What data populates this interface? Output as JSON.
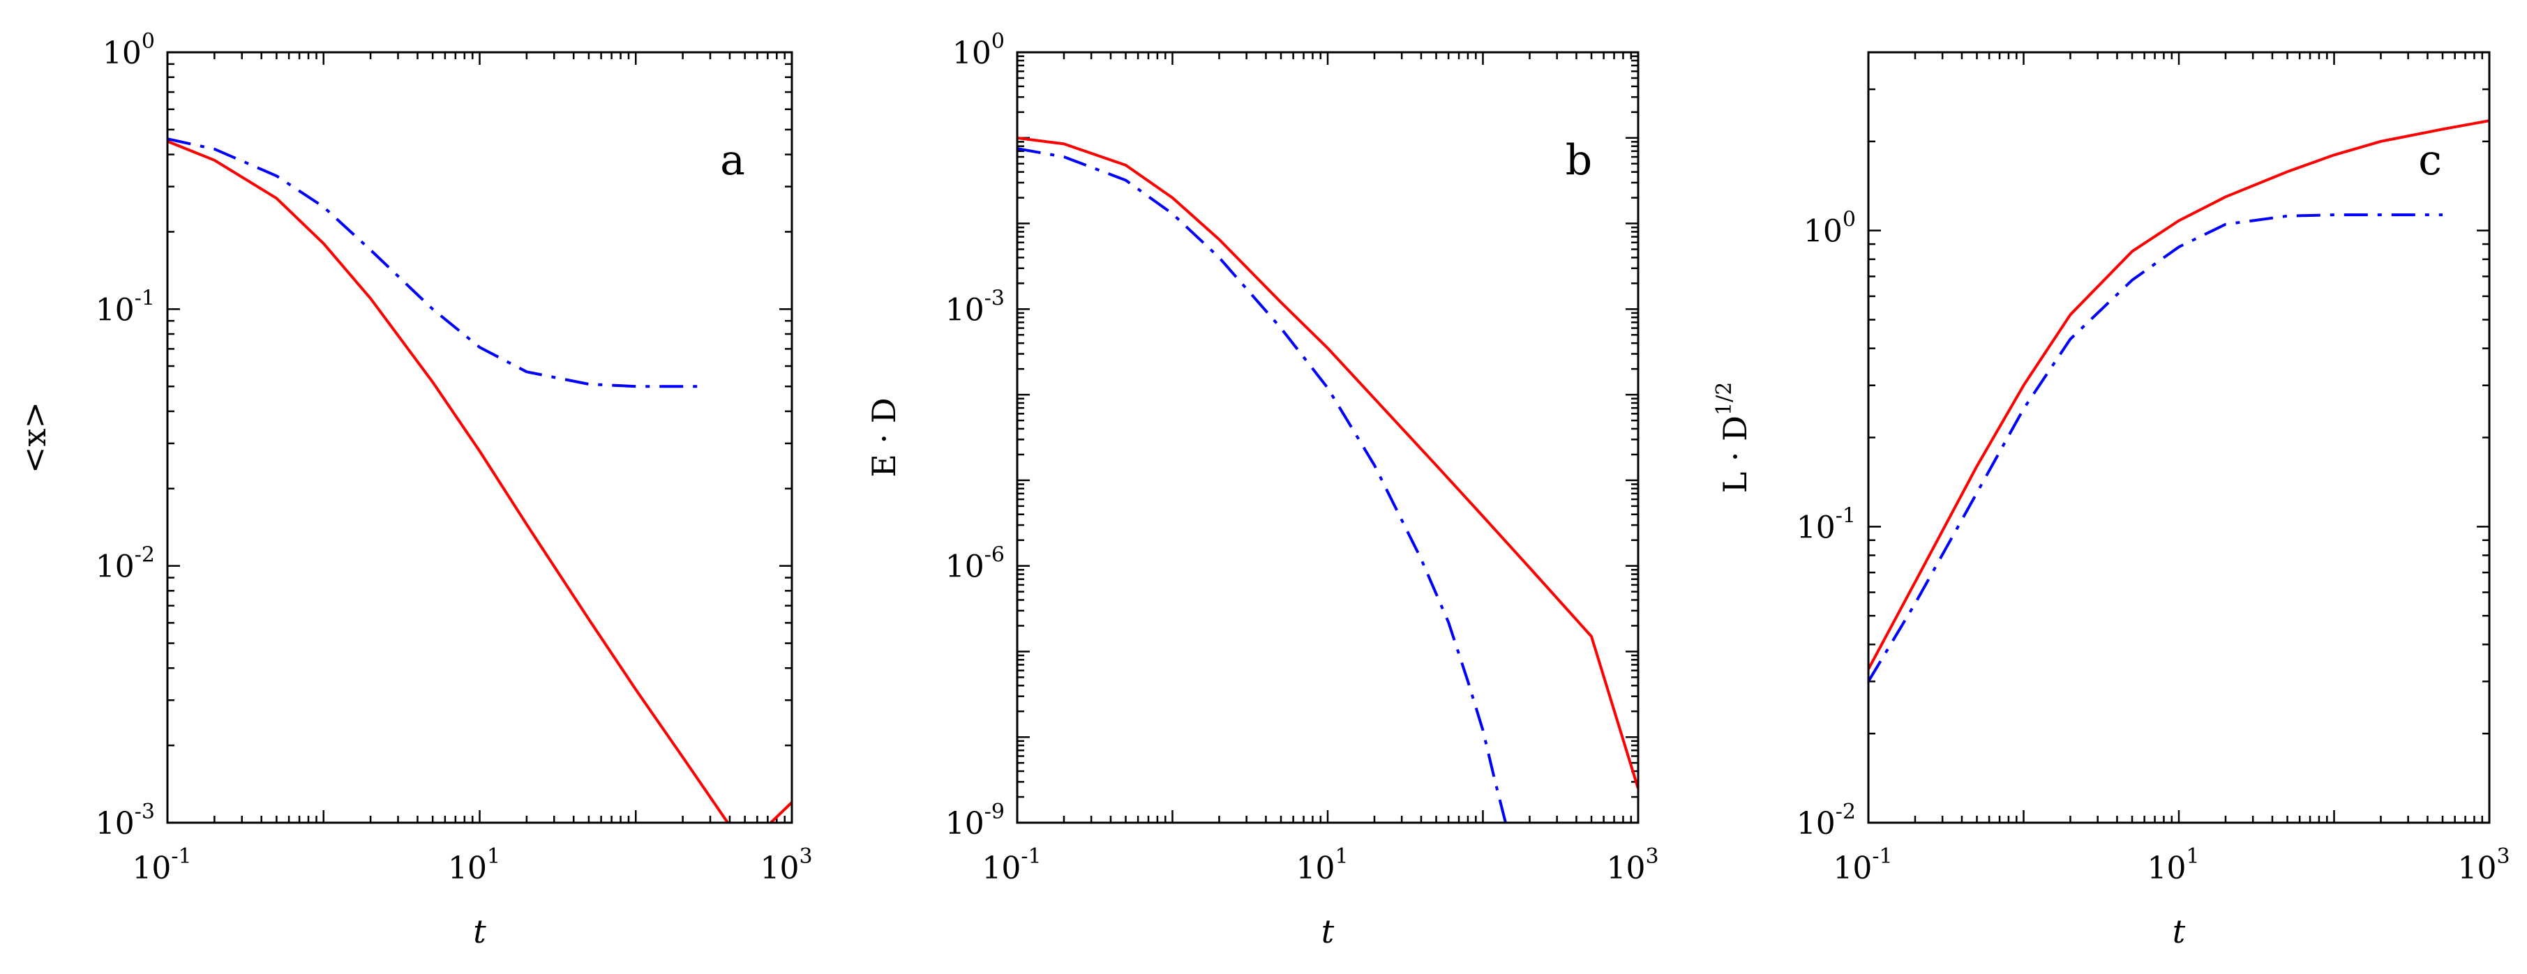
{
  "chart_data": [
    {
      "type": "line",
      "panel_label": "a",
      "xlabel": "t",
      "ylabel": "<x>",
      "xscale": "log",
      "yscale": "log",
      "xlim": [
        0.1,
        1000
      ],
      "ylim": [
        0.001,
        1
      ],
      "x_ticks": [
        {
          "base": "10",
          "exp": "-1"
        },
        {
          "base": "10",
          "exp": "1"
        },
        {
          "base": "10",
          "exp": "3"
        }
      ],
      "y_ticks": [
        {
          "base": "10",
          "exp": "0"
        },
        {
          "base": "10",
          "exp": "-1"
        },
        {
          "base": "10",
          "exp": "-2"
        },
        {
          "base": "10",
          "exp": "-3"
        }
      ],
      "grid": false,
      "series": [
        {
          "color": "#ff0000",
          "dash": "solid",
          "x": [
            0.1,
            0.2,
            0.5,
            1,
            2,
            5,
            10,
            20,
            50,
            100,
            200,
            500,
            1000
          ],
          "y": [
            0.45,
            0.38,
            0.27,
            0.18,
            0.11,
            0.052,
            0.028,
            0.0145,
            0.0062,
            0.0033,
            0.0018,
            0.0008,
            0.0012
          ]
        },
        {
          "color": "#0000ff",
          "dash": "dashdot",
          "x": [
            0.1,
            0.2,
            0.5,
            1,
            2,
            5,
            10,
            20,
            50,
            100,
            200,
            250
          ],
          "y": [
            0.46,
            0.42,
            0.33,
            0.25,
            0.17,
            0.1,
            0.071,
            0.057,
            0.051,
            0.05,
            0.05,
            0.05
          ]
        }
      ]
    },
    {
      "type": "line",
      "panel_label": "b",
      "xlabel": "t",
      "ylabel": "E · D",
      "xscale": "log",
      "yscale": "log",
      "xlim": [
        0.1,
        1000
      ],
      "ylim": [
        1e-09,
        1
      ],
      "x_ticks": [
        {
          "base": "10",
          "exp": "-1"
        },
        {
          "base": "10",
          "exp": "1"
        },
        {
          "base": "10",
          "exp": "3"
        }
      ],
      "y_ticks": [
        {
          "base": "10",
          "exp": "0"
        },
        {
          "base": "10",
          "exp": "-3"
        },
        {
          "base": "10",
          "exp": "-6"
        },
        {
          "base": "10",
          "exp": "-9"
        }
      ],
      "grid": false,
      "series": [
        {
          "color": "#ff0000",
          "dash": "solid",
          "x": [
            0.1,
            0.2,
            0.5,
            1,
            2,
            5,
            10,
            20,
            50,
            100,
            200,
            500,
            1000
          ],
          "y": [
            0.1,
            0.085,
            0.048,
            0.02,
            0.0065,
            0.0012,
            0.00035,
            9e-05,
            1.5e-05,
            3.8e-06,
            9.5e-07,
            1.5e-07,
            2.5e-09
          ]
        },
        {
          "color": "#0000ff",
          "dash": "dashdot",
          "x": [
            0.1,
            0.2,
            0.5,
            1,
            2,
            5,
            10,
            20,
            40,
            60,
            80,
            100,
            120,
            140
          ],
          "y": [
            0.075,
            0.06,
            0.032,
            0.013,
            0.004,
            0.0006,
            0.00012,
            1.5e-05,
            1.2e-06,
            2.2e-07,
            4.5e-08,
            1.2e-08,
            3e-09,
            1e-09
          ]
        }
      ]
    },
    {
      "type": "line",
      "panel_label": "c",
      "xlabel": "t",
      "ylabel": "L · D^1/2",
      "ylabel_base": "L · D",
      "ylabel_exp": "1/2",
      "xscale": "log",
      "yscale": "log",
      "xlim": [
        0.1,
        1000
      ],
      "ylim": [
        0.01,
        4
      ],
      "x_ticks": [
        {
          "base": "10",
          "exp": "-1"
        },
        {
          "base": "10",
          "exp": "1"
        },
        {
          "base": "10",
          "exp": "3"
        }
      ],
      "y_ticks": [
        {
          "base": "10",
          "exp": "0"
        },
        {
          "base": "10",
          "exp": "-1"
        },
        {
          "base": "10",
          "exp": "-2"
        }
      ],
      "grid": false,
      "series": [
        {
          "color": "#ff0000",
          "dash": "solid",
          "x": [
            0.1,
            0.2,
            0.5,
            1,
            2,
            5,
            10,
            20,
            50,
            100,
            200,
            500,
            1000
          ],
          "y": [
            0.033,
            0.065,
            0.16,
            0.3,
            0.52,
            0.85,
            1.08,
            1.3,
            1.58,
            1.8,
            2.0,
            2.2,
            2.35
          ]
        },
        {
          "color": "#0000ff",
          "dash": "dashdot",
          "x": [
            0.1,
            0.2,
            0.5,
            1,
            2,
            5,
            10,
            20,
            50,
            100,
            200,
            500
          ],
          "y": [
            0.03,
            0.055,
            0.13,
            0.25,
            0.43,
            0.68,
            0.88,
            1.05,
            1.12,
            1.13,
            1.13,
            1.13
          ]
        }
      ]
    }
  ]
}
